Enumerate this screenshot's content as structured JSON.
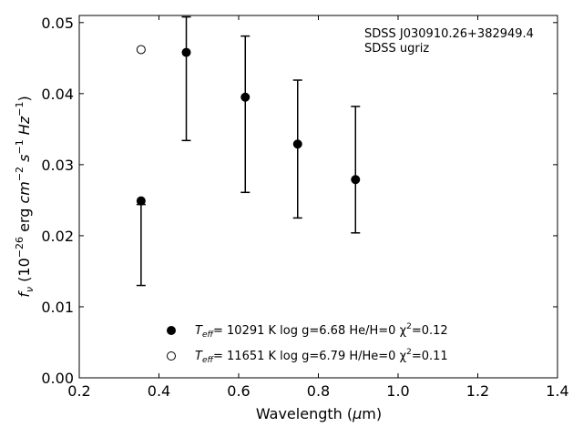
{
  "chart_data": {
    "type": "scatter",
    "xlabel": "Wavelength (μm)",
    "ylabel": "fν (10⁻²⁶ erg cm⁻² s⁻¹ Hz⁻¹)",
    "xlim": [
      0.2,
      1.4
    ],
    "ylim": [
      0.0,
      0.051
    ],
    "xticks": [
      "0.2",
      "0.4",
      "0.6",
      "0.8",
      "1.0",
      "1.2",
      "1.4"
    ],
    "yticks": [
      "0.00",
      "0.01",
      "0.02",
      "0.03",
      "0.04",
      "0.05"
    ],
    "annotation": [
      "SDSS J030910.26+382949.4",
      "SDSS ugriz"
    ],
    "observed": {
      "x": [
        0.3551,
        0.4686,
        0.6166,
        0.748,
        0.8932
      ],
      "y": [
        0.0187,
        0.0421,
        0.0371,
        0.0322,
        0.0293
      ],
      "yerr": [
        0.0057,
        0.0087,
        0.011,
        0.0097,
        0.0089
      ]
    },
    "series": [
      {
        "marker": "filled-circle",
        "label": "T_eff= 10291 K  log g=6.68  He/H=0  χ²=0.12",
        "x": [
          0.3551,
          0.4686,
          0.6166,
          0.748,
          0.8932
        ],
        "y": [
          0.0249,
          0.0458,
          0.0395,
          0.0329,
          0.0279
        ]
      },
      {
        "marker": "open-circle",
        "label": "T_eff= 11651 K  log g=6.79  H/He=0  χ²=0.11",
        "x": [
          0.3551
        ],
        "y": [
          0.0462
        ]
      }
    ],
    "legend": {
      "placement": "lower-center",
      "entries": [
        {
          "teff_label": "T",
          "teff_sub": "eff",
          "rest": "= 10291 K  log g=6.68  He/H=0  χ",
          "chi_sup": "2",
          "chi_val": "=0.12"
        },
        {
          "teff_label": "T",
          "teff_sub": "eff",
          "rest": "= 11651 K  log g=6.79  H/He=0  χ",
          "chi_sup": "2",
          "chi_val": "=0.11"
        }
      ]
    },
    "grid": false
  }
}
